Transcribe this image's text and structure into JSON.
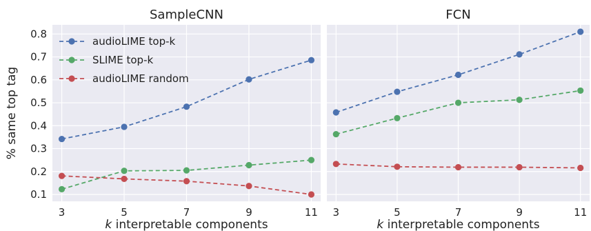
{
  "chart_data": [
    {
      "type": "line",
      "title": "SampleCNN",
      "xlabel": "k interpretable components",
      "xlabel_italic_part": "k",
      "xlabel_rest": " interpretable components",
      "ylabel": "% same top tag",
      "x": [
        3,
        5,
        7,
        9,
        11
      ],
      "xlim": [
        2.7,
        11.3
      ],
      "ylim": [
        0.07,
        0.84
      ],
      "yticks": [
        0.1,
        0.2,
        0.3,
        0.4,
        0.5,
        0.6,
        0.7,
        0.8
      ],
      "ytick_labels": [
        "0.1",
        "0.2",
        "0.3",
        "0.4",
        "0.5",
        "0.6",
        "0.7",
        "0.8"
      ],
      "xticks": [
        3,
        5,
        7,
        9,
        11
      ],
      "xtick_labels": [
        "3",
        "5",
        "7",
        "9",
        "11"
      ],
      "grid": true,
      "legend": "top-left",
      "series": [
        {
          "name": "audioLIME top-k",
          "color": "#4c72b0",
          "values": [
            0.342,
            0.395,
            0.483,
            0.602,
            0.686
          ]
        },
        {
          "name": "SLIME top-k",
          "color": "#55a868",
          "values": [
            0.123,
            0.203,
            0.205,
            0.228,
            0.25
          ]
        },
        {
          "name": "audioLIME random",
          "color": "#c44e52",
          "values": [
            0.181,
            0.168,
            0.158,
            0.137,
            0.1
          ]
        }
      ]
    },
    {
      "type": "line",
      "title": "FCN",
      "xlabel": "k interpretable components",
      "xlabel_italic_part": "k",
      "xlabel_rest": " interpretable components",
      "x": [
        3,
        5,
        7,
        9,
        11
      ],
      "xlim": [
        2.7,
        11.3
      ],
      "ylim": [
        0.07,
        0.84
      ],
      "xticks": [
        3,
        5,
        7,
        9,
        11
      ],
      "xtick_labels": [
        "3",
        "5",
        "7",
        "9",
        "11"
      ],
      "grid": true,
      "series": [
        {
          "name": "audioLIME top-k",
          "color": "#4c72b0",
          "values": [
            0.458,
            0.548,
            0.622,
            0.711,
            0.81
          ]
        },
        {
          "name": "SLIME top-k",
          "color": "#55a868",
          "values": [
            0.363,
            0.433,
            0.5,
            0.513,
            0.553
          ]
        },
        {
          "name": "audioLIME random",
          "color": "#c44e52",
          "values": [
            0.233,
            0.221,
            0.219,
            0.219,
            0.216
          ]
        }
      ]
    }
  ]
}
